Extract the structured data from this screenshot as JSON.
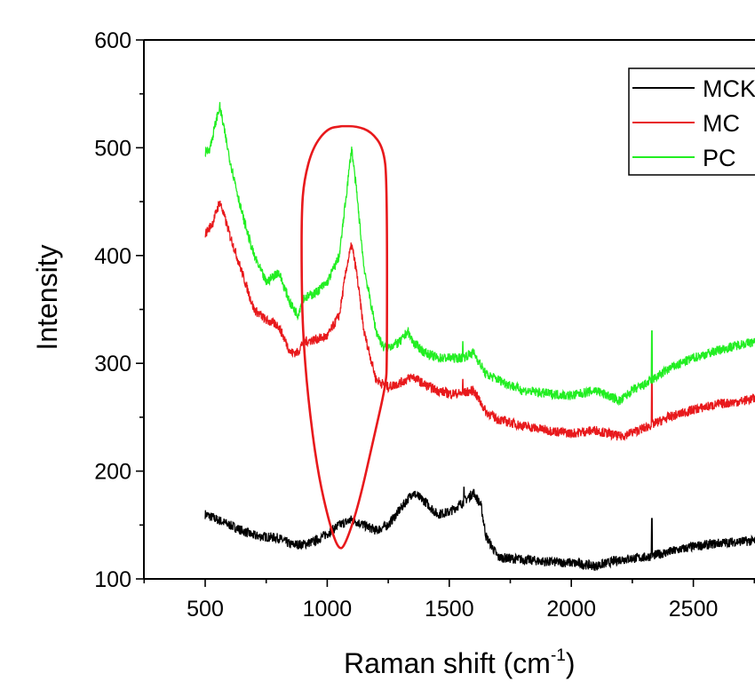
{
  "chart_data": {
    "type": "line",
    "title": "",
    "xlabel": "Raman shift (cm",
    "xlabel_sup": "-1",
    "xlabel_end": ")",
    "ylabel": "Intensity",
    "xlim": [
      250,
      2760
    ],
    "ylim": [
      100,
      600
    ],
    "xticks": [
      500,
      1000,
      1500,
      2000,
      2500
    ],
    "yticks": [
      100,
      200,
      300,
      400,
      500,
      600
    ],
    "grid": false,
    "legend_position": "top-right",
    "series": [
      {
        "name": "MCK",
        "color": "#000000",
        "x": [
          500,
          600,
          700,
          800,
          850,
          900,
          950,
          1000,
          1050,
          1100,
          1150,
          1200,
          1250,
          1300,
          1350,
          1400,
          1450,
          1500,
          1550,
          1600,
          1630,
          1650,
          1700,
          1800,
          1900,
          2000,
          2100,
          2200,
          2300,
          2400,
          2500,
          2600,
          2700,
          2760
        ],
        "y": [
          160,
          150,
          140,
          138,
          132,
          132,
          135,
          142,
          150,
          155,
          150,
          145,
          150,
          165,
          180,
          172,
          160,
          162,
          170,
          180,
          168,
          140,
          120,
          118,
          116,
          115,
          112,
          118,
          120,
          125,
          130,
          133,
          135,
          135
        ],
        "spikes": [
          [
            1560,
            185
          ],
          [
            2330,
            156
          ]
        ]
      },
      {
        "name": "MC",
        "color": "#e8191c",
        "x": [
          500,
          530,
          560,
          600,
          650,
          700,
          750,
          800,
          850,
          880,
          900,
          950,
          1000,
          1050,
          1080,
          1100,
          1120,
          1150,
          1200,
          1250,
          1300,
          1350,
          1400,
          1450,
          1500,
          1550,
          1600,
          1650,
          1700,
          1800,
          1900,
          2000,
          2100,
          2200,
          2300,
          2400,
          2500,
          2600,
          2700,
          2760
        ],
        "y": [
          420,
          430,
          450,
          420,
          385,
          350,
          340,
          335,
          310,
          310,
          320,
          322,
          325,
          345,
          390,
          410,
          385,
          330,
          285,
          278,
          282,
          288,
          280,
          275,
          272,
          272,
          275,
          255,
          248,
          242,
          238,
          235,
          238,
          232,
          240,
          250,
          257,
          262,
          265,
          268
        ],
        "spikes": [
          [
            1555,
            285
          ],
          [
            2330,
            290
          ]
        ]
      },
      {
        "name": "PC",
        "color": "#22ee22",
        "x": [
          500,
          520,
          550,
          560,
          600,
          650,
          700,
          750,
          800,
          850,
          880,
          900,
          950,
          1000,
          1050,
          1080,
          1100,
          1120,
          1150,
          1200,
          1230,
          1250,
          1300,
          1330,
          1350,
          1400,
          1450,
          1500,
          1550,
          1600,
          1650,
          1700,
          1800,
          1900,
          2000,
          2100,
          2200,
          2250,
          2300,
          2400,
          2500,
          2600,
          2700,
          2760
        ],
        "y": [
          495,
          500,
          530,
          538,
          490,
          440,
          400,
          375,
          385,
          355,
          345,
          360,
          365,
          375,
          400,
          460,
          500,
          460,
          390,
          330,
          315,
          315,
          320,
          330,
          320,
          310,
          305,
          305,
          305,
          310,
          290,
          285,
          275,
          272,
          270,
          275,
          265,
          275,
          280,
          295,
          305,
          312,
          318,
          320
        ],
        "spikes": [
          [
            1555,
            320
          ],
          [
            2330,
            330
          ]
        ]
      }
    ],
    "annotations": [
      {
        "type": "closed-curve",
        "color": "#e8191c",
        "points": [
          [
            1060,
            520
          ],
          [
            1000,
            518
          ],
          [
            940,
            500
          ],
          [
            905,
            470
          ],
          [
            895,
            440
          ],
          [
            895,
            380
          ],
          [
            900,
            330
          ],
          [
            920,
            270
          ],
          [
            960,
            200
          ],
          [
            1010,
            150
          ],
          [
            1050,
            125
          ],
          [
            1080,
            135
          ],
          [
            1130,
            170
          ],
          [
            1190,
            230
          ],
          [
            1240,
            280
          ],
          [
            1245,
            300
          ],
          [
            1245,
            470
          ],
          [
            1230,
            500
          ],
          [
            1180,
            515
          ],
          [
            1120,
            520
          ],
          [
            1060,
            520
          ]
        ]
      }
    ]
  }
}
